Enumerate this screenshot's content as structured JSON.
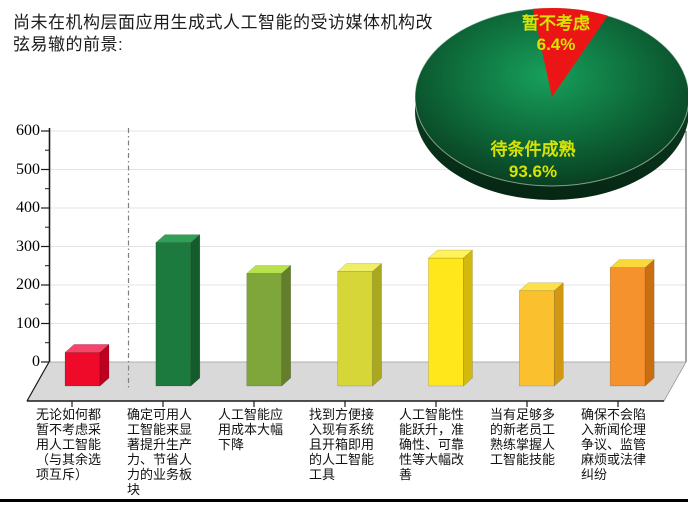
{
  "title": "尚未在机构层面应用生成式人工智能的受访媒体机构改弦易辙的前景:",
  "chart_data": [
    {
      "type": "pie",
      "style": "3d",
      "legend_position": "none",
      "label_color": "#d9e300",
      "slices": [
        {
          "label": "暂不考虑",
          "pct": 6.4,
          "pct_text": "6.4%",
          "color": "#ec1515"
        },
        {
          "label": "待条件成熟",
          "pct": 93.6,
          "pct_text": "93.6%",
          "color": "#0d6436"
        }
      ]
    },
    {
      "type": "bar",
      "style": "3d",
      "grid": "horizontal",
      "ylim": [
        0,
        600
      ],
      "ytick_step": 100,
      "yticks": [
        "600",
        "500",
        "400",
        "300",
        "200",
        "100",
        "0"
      ],
      "separator": {
        "after_category_index": 0,
        "line_style": "dash-dot"
      },
      "categories": [
        "无论如何都暂不考虑采用人工智能（与其余选项互斥）",
        "确定可用人工智能来显著提升生产力、节省人力的业务板块",
        "人工智能应用成本大幅下降",
        "找到方便接入现有系统且开箱即用的人工智能工具",
        "人工智能性能跃升，准确性、可靠性等大幅改善",
        "当有足够多的新老员工熟练掌握人工智能技能",
        "确保不会陷入新闻伦理争议、监管麻烦或法律纠纷"
      ],
      "values": [
        25,
        310,
        230,
        235,
        270,
        185,
        245
      ],
      "bar_colors": [
        {
          "front": "#ee0a28",
          "top": "#f5456a",
          "side": "#bd0020"
        },
        {
          "front": "#1d7a3e",
          "top": "#2fa055",
          "side": "#155c2d"
        },
        {
          "front": "#7fa63b",
          "top": "#b9e14b",
          "side": "#637f2b"
        },
        {
          "front": "#d6d639",
          "top": "#efee67",
          "side": "#aaa81f"
        },
        {
          "front": "#ffe71b",
          "top": "#fff25e",
          "side": "#d2b90c"
        },
        {
          "front": "#fbc02d",
          "top": "#ffe047",
          "side": "#d29812"
        },
        {
          "front": "#f5922d",
          "top": "#fad83c",
          "side": "#c96f12"
        }
      ]
    }
  ]
}
